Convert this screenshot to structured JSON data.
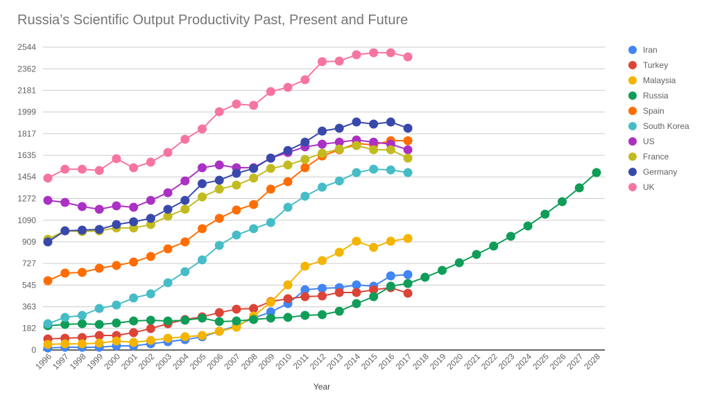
{
  "chart_data": {
    "type": "line",
    "title": "Russia’s Scientific Output Productivity Past, Present and Future",
    "xlabel": "Year",
    "ylabel": "",
    "ylim": [
      0,
      2544
    ],
    "yticks": [
      "0",
      "182",
      "363",
      "545",
      "727",
      "909",
      "1090",
      "1272",
      "1454",
      "1635",
      "1817",
      "1999",
      "2181",
      "2362",
      "2544"
    ],
    "ytick_values": [
      0,
      182,
      363,
      545,
      727,
      909,
      1090,
      1272,
      1454,
      1635,
      1817,
      1999,
      2181,
      2362,
      2544
    ],
    "x": [
      "1996",
      "1997",
      "1998",
      "1999",
      "2000",
      "2001",
      "2002",
      "2003",
      "2004",
      "2005",
      "2006",
      "2007",
      "2008",
      "2009",
      "2010",
      "2011",
      "2012",
      "2013",
      "2014",
      "2015",
      "2016",
      "2017",
      "2018",
      "2019",
      "2020",
      "2021",
      "2022",
      "2023",
      "2024",
      "2025",
      "2026",
      "2027",
      "2028"
    ],
    "grid": true,
    "legend_position": "right",
    "series": [
      {
        "name": "Iran",
        "color": "#4285f4",
        "values": [
          17,
          23,
          23,
          23,
          35,
          35,
          52,
          70,
          87,
          111,
          157,
          204,
          268,
          320,
          390,
          506,
          518,
          524,
          547,
          536,
          623,
          634
        ]
      },
      {
        "name": "Turkey",
        "color": "#db4437",
        "values": [
          93,
          99,
          105,
          122,
          122,
          146,
          180,
          221,
          256,
          279,
          314,
          343,
          349,
          407,
          431,
          448,
          454,
          483,
          483,
          506,
          524,
          477
        ]
      },
      {
        "name": "Malaysia",
        "color": "#f4b400",
        "values": [
          47,
          52,
          52,
          58,
          76,
          64,
          81,
          99,
          111,
          122,
          157,
          192,
          285,
          402,
          547,
          704,
          751,
          821,
          914,
          862,
          914,
          937
        ]
      },
      {
        "name": "Russia",
        "color": "#0f9d58",
        "values": [
          204,
          215,
          221,
          215,
          227,
          244,
          250,
          244,
          250,
          268,
          239,
          244,
          256,
          268,
          274,
          291,
          297,
          326,
          390,
          448,
          536,
          559,
          611,
          669,
          733,
          803,
          873,
          955,
          1042,
          1141,
          1246,
          1362,
          1490
        ]
      },
      {
        "name": "Spain",
        "color": "#ff6d00",
        "values": [
          582,
          646,
          652,
          687,
          710,
          739,
          786,
          850,
          908,
          1019,
          1106,
          1176,
          1222,
          1351,
          1414,
          1531,
          1630,
          1682,
          1735,
          1723,
          1758,
          1758
        ]
      },
      {
        "name": "South Korea",
        "color": "#46bdc6",
        "values": [
          221,
          274,
          291,
          349,
          378,
          437,
          472,
          565,
          658,
          757,
          879,
          966,
          1019,
          1071,
          1199,
          1292,
          1368,
          1420,
          1490,
          1519,
          1513,
          1490
        ]
      },
      {
        "name": "US",
        "color": "#ab30c4",
        "values": [
          1257,
          1240,
          1205,
          1182,
          1211,
          1199,
          1257,
          1321,
          1420,
          1531,
          1554,
          1531,
          1531,
          1612,
          1659,
          1706,
          1729,
          1746,
          1764,
          1746,
          1729,
          1682
        ]
      },
      {
        "name": "France",
        "color": "#c2bb20",
        "values": [
          931,
          1001,
          995,
          1001,
          1025,
          1025,
          1054,
          1124,
          1182,
          1286,
          1351,
          1385,
          1444,
          1525,
          1554,
          1601,
          1653,
          1688,
          1717,
          1682,
          1682,
          1612
        ]
      },
      {
        "name": "Germany",
        "color": "#3949ab",
        "values": [
          908,
          1001,
          1007,
          1013,
          1054,
          1077,
          1106,
          1182,
          1257,
          1397,
          1426,
          1484,
          1525,
          1612,
          1676,
          1746,
          1839,
          1863,
          1915,
          1898,
          1915,
          1863
        ]
      },
      {
        "name": "UK",
        "color": "#f6759f",
        "values": [
          1444,
          1519,
          1519,
          1508,
          1607,
          1531,
          1578,
          1659,
          1770,
          1857,
          2002,
          2066,
          2055,
          2171,
          2206,
          2270,
          2422,
          2427,
          2480,
          2497,
          2497,
          2462
        ]
      }
    ]
  }
}
